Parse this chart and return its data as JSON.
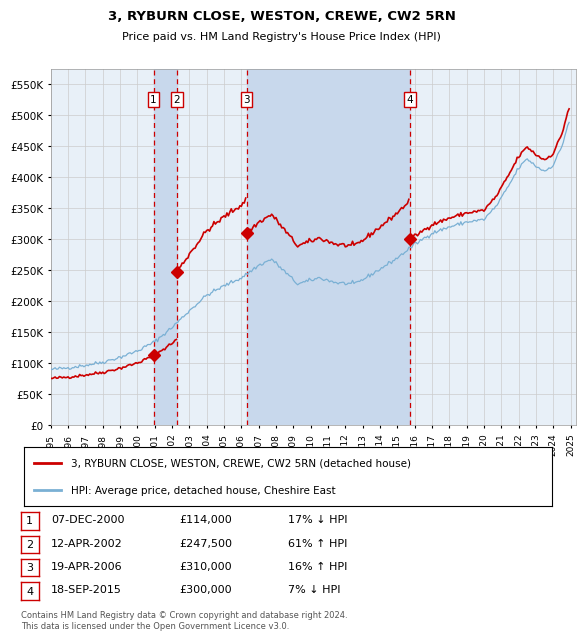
{
  "title": "3, RYBURN CLOSE, WESTON, CREWE, CW2 5RN",
  "subtitle": "Price paid vs. HM Land Registry's House Price Index (HPI)",
  "background_color": "#ffffff",
  "plot_background": "#e8f0f8",
  "grid_color": "#cccccc",
  "ylim": [
    0,
    575000
  ],
  "yticks": [
    0,
    50000,
    100000,
    150000,
    200000,
    250000,
    300000,
    350000,
    400000,
    450000,
    500000,
    550000
  ],
  "xlim_start": 1995.0,
  "xlim_end": 2025.3,
  "sale_dates": [
    2000.93,
    2002.28,
    2006.3,
    2015.72
  ],
  "sale_prices": [
    114000,
    247500,
    310000,
    300000
  ],
  "sale_labels": [
    "1",
    "2",
    "3",
    "4"
  ],
  "red_line_color": "#cc0000",
  "blue_line_color": "#7ab0d4",
  "sale_marker_color": "#cc0000",
  "vline_color": "#cc0000",
  "shade_color": "#c8d8ec",
  "legend_items": [
    "3, RYBURN CLOSE, WESTON, CREWE, CW2 5RN (detached house)",
    "HPI: Average price, detached house, Cheshire East"
  ],
  "table_rows": [
    [
      "1",
      "07-DEC-2000",
      "£114,000",
      "17% ↓ HPI"
    ],
    [
      "2",
      "12-APR-2002",
      "£247,500",
      "61% ↑ HPI"
    ],
    [
      "3",
      "19-APR-2006",
      "£310,000",
      "16% ↑ HPI"
    ],
    [
      "4",
      "18-SEP-2015",
      "£300,000",
      "7% ↓ HPI"
    ]
  ],
  "footnote": "Contains HM Land Registry data © Crown copyright and database right 2024.\nThis data is licensed under the Open Government Licence v3.0."
}
